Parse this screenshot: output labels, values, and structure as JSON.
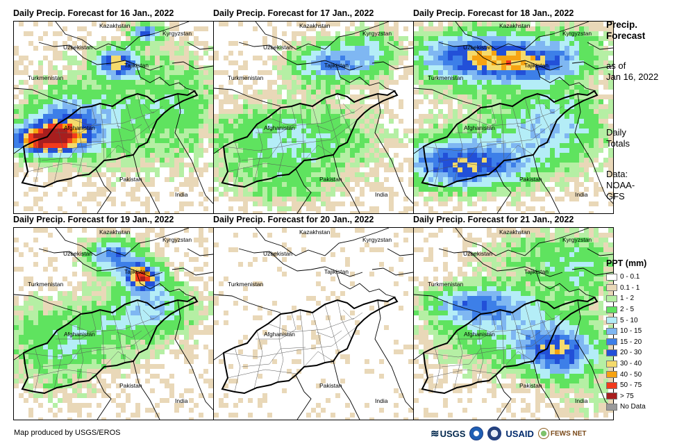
{
  "panels": [
    {
      "title": "Daily Precip. Forecast for 16 Jan., 2022",
      "pattern": "d16"
    },
    {
      "title": "Daily Precip. Forecast for 17 Jan., 2022",
      "pattern": "d17"
    },
    {
      "title": "Daily Precip. Forecast for 18 Jan., 2022",
      "pattern": "d18"
    },
    {
      "title": "Daily Precip. Forecast for 19 Jan., 2022",
      "pattern": "d19"
    },
    {
      "title": "Daily Precip. Forecast for 20 Jan., 2022",
      "pattern": "d20"
    },
    {
      "title": "Daily Precip. Forecast for 21 Jan., 2022",
      "pattern": "d21"
    }
  ],
  "map_labels": {
    "kazakhstan": "Kazakhstan",
    "kyrgyzstan": "Kyrgyzstan",
    "uzbekistan": "Uzbekistan",
    "tajikistan": "Tajikistan",
    "turkmenistan": "Turkmenistan",
    "afghanistan": "Afghanistan",
    "pakistan": "Pakistan",
    "india": "India"
  },
  "side": {
    "title_line1": "Precip.",
    "title_line2": "Forecast",
    "asof_line1": "as of",
    "asof_line2": "Jan 16, 2022",
    "totals_line1": "Daily",
    "totals_line2": "Totals",
    "data_line1": "Data:",
    "data_line2": "NOAA-",
    "data_line3": "GFS"
  },
  "legend": {
    "title": "PPT (mm)",
    "items": [
      {
        "label": "0 - 0.1",
        "color": "#ffffff"
      },
      {
        "label": "0.1 - 1",
        "color": "#e9d8b8"
      },
      {
        "label": "1 - 2",
        "color": "#b5efa4"
      },
      {
        "label": "2 - 5",
        "color": "#5fe35f"
      },
      {
        "label": "5 - 10",
        "color": "#b4edf7"
      },
      {
        "label": "10 - 15",
        "color": "#7fb7f2"
      },
      {
        "label": "15 - 20",
        "color": "#3d7fe8"
      },
      {
        "label": "20 - 30",
        "color": "#2250d8"
      },
      {
        "label": "30 - 40",
        "color": "#f4da6c"
      },
      {
        "label": "40 - 50",
        "color": "#f6a312"
      },
      {
        "label": "50 - 75",
        "color": "#f23a1c"
      },
      {
        "label": "> 75",
        "color": "#a81e1e"
      },
      {
        "label": "No Data",
        "color": "#9a9a9a"
      }
    ]
  },
  "credit": "Map produced by USGS/EROS",
  "logos": {
    "usgs": "USGS",
    "usaid": "USAID",
    "fewsnet": "FEWS NET"
  }
}
